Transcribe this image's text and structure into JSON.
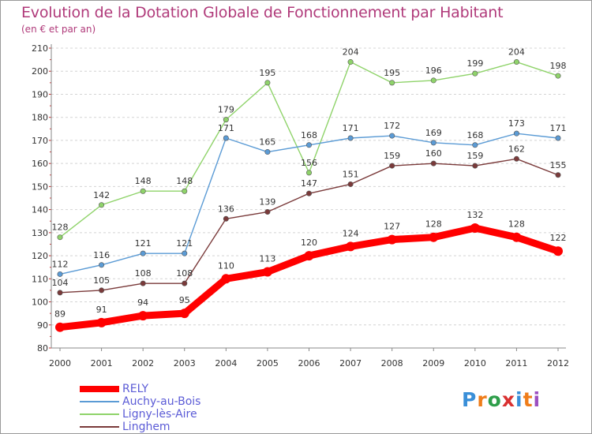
{
  "title": "Evolution de la Dotation Globale de Fonctionnement par Habitant",
  "subtitle": "(en € et par an)",
  "brand": {
    "text": "Proxiti",
    "colors": [
      "#3a8fd8",
      "#ef7d1a",
      "#2e9e4a",
      "#d93030",
      "#3a8fd8",
      "#ef7d1a",
      "#9c4fc0"
    ]
  },
  "chart_data": {
    "type": "line",
    "title": "Evolution de la Dotation Globale de Fonctionnement par Habitant",
    "subtitle": "(en € et par an)",
    "xlabel": "",
    "ylabel": "",
    "categories": [
      "2000",
      "2001",
      "2002",
      "2003",
      "2004",
      "2005",
      "2006",
      "2007",
      "2008",
      "2009",
      "2010",
      "2011",
      "2012"
    ],
    "ylim": [
      80,
      210
    ],
    "yticks": [
      80,
      90,
      100,
      110,
      120,
      130,
      140,
      150,
      160,
      170,
      180,
      190,
      200,
      210
    ],
    "grid": "horizontal-dashed",
    "legend_position": "bottom-left",
    "series": [
      {
        "name": "RELY",
        "color": "#ff0000",
        "values": [
          89,
          91,
          94,
          95,
          110,
          113,
          120,
          124,
          127,
          128,
          132,
          128,
          122
        ]
      },
      {
        "name": "Auchy-au-Bois",
        "color": "#5b9bd5",
        "values": [
          112,
          116,
          121,
          121,
          171,
          165,
          168,
          171,
          172,
          169,
          168,
          173,
          171
        ]
      },
      {
        "name": "Ligny-lès-Aire",
        "color": "#8fd36a",
        "values": [
          128,
          142,
          148,
          148,
          179,
          195,
          156,
          204,
          195,
          196,
          199,
          204,
          198
        ]
      },
      {
        "name": "Linghem",
        "color": "#7a3a3a",
        "values": [
          104,
          105,
          108,
          108,
          136,
          139,
          147,
          151,
          159,
          160,
          159,
          162,
          155
        ]
      }
    ]
  }
}
